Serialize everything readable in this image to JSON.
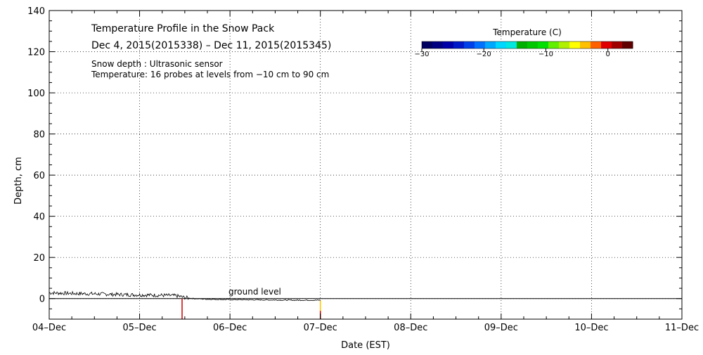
{
  "chart_data": {
    "type": "line",
    "title": "Temperature Profile in the Snow Pack",
    "subtitle": "Dec  4, 2015(2015338) – Dec 11, 2015(2015345)",
    "notes": [
      "Snow depth : Ultrasonic sensor",
      "Temperature: 16 probes at levels from −10 cm to 90 cm"
    ],
    "xlabel": "Date (EST)",
    "ylabel": "Depth, cm",
    "x_ticks": [
      "04–Dec",
      "05–Dec",
      "06–Dec",
      "07–Dec",
      "08–Dec",
      "09–Dec",
      "10–Dec",
      "11–Dec"
    ],
    "xlim": [
      0,
      7
    ],
    "ylim": [
      -10,
      140
    ],
    "y_ticks": [
      0,
      20,
      40,
      60,
      80,
      100,
      120,
      140
    ],
    "grid": true,
    "annotation": "ground level",
    "ground_level": 0,
    "series": [
      {
        "x": [
          0.0,
          0.25,
          0.5,
          0.75,
          1.0,
          1.25,
          1.4,
          1.5,
          1.6,
          1.75,
          2.0,
          2.25,
          2.5,
          2.75,
          3.0
        ],
        "y": [
          2.8,
          2.5,
          2.3,
          2.0,
          1.8,
          1.6,
          1.4,
          0.5,
          0.0,
          -0.3,
          -0.5,
          -0.6,
          -0.7,
          -0.8,
          -0.8
        ]
      }
    ],
    "temperature_marks": [
      {
        "x": 1.47,
        "y_from": -10,
        "y_to": 0,
        "color": "#cc0000"
      },
      {
        "x": 3.0,
        "y_from": -10,
        "y_to": -1,
        "color": "#cc0000"
      },
      {
        "x": 3.0,
        "y_from": -6,
        "y_to": -1,
        "color": "#ffd000"
      }
    ],
    "colorbar": {
      "label": "Temperature (C)",
      "ticks": [
        "−30",
        "−20",
        "−10",
        "0"
      ],
      "tick_values": [
        -30,
        -20,
        -10,
        0
      ],
      "range": [
        -30,
        4
      ],
      "colors": [
        "#000060",
        "#000080",
        "#0000a8",
        "#0018c8",
        "#0040e8",
        "#0070ff",
        "#00a8ff",
        "#00d8ff",
        "#00e8e0",
        "#00b000",
        "#00c800",
        "#00e000",
        "#60f000",
        "#b0f000",
        "#ffff00",
        "#ffc000",
        "#ff6000",
        "#e00000",
        "#a00000",
        "#600000"
      ]
    }
  }
}
